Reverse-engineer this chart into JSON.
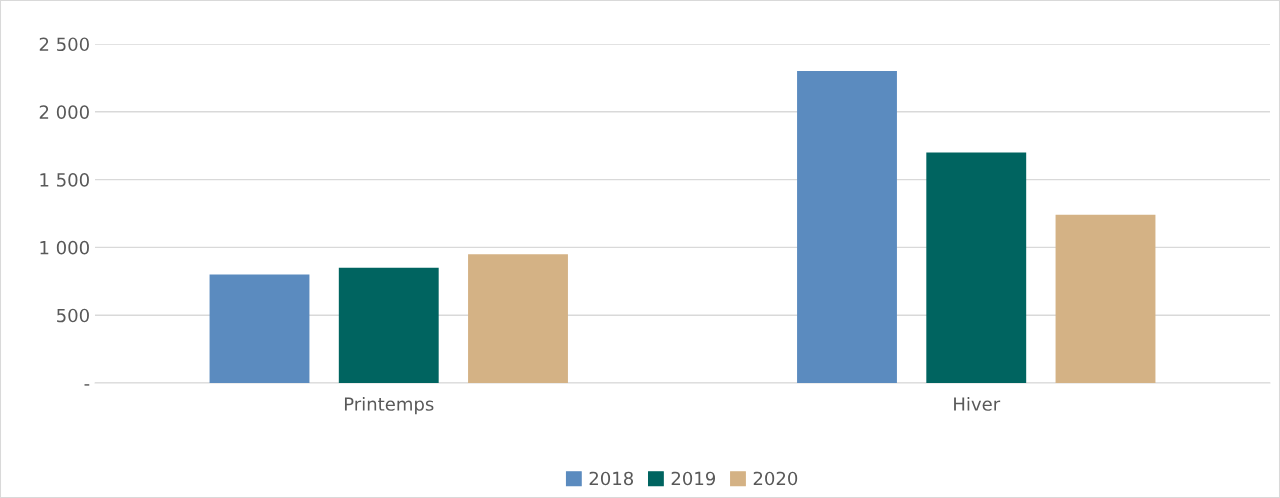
{
  "chart_data": {
    "type": "bar",
    "categories": [
      "Printemps",
      "Hiver"
    ],
    "series": [
      {
        "name": "2018",
        "color": "#5b8bbf",
        "values": [
          800,
          2300
        ]
      },
      {
        "name": "2019",
        "color": "#006460",
        "values": [
          850,
          1700
        ]
      },
      {
        "name": "2020",
        "color": "#d4b285",
        "values": [
          950,
          1240
        ]
      }
    ],
    "ylim": [
      0,
      2500
    ],
    "yticks": [
      {
        "value": 0,
        "label": "-"
      },
      {
        "value": 500,
        "label": "500"
      },
      {
        "value": 1000,
        "label": "1 000"
      },
      {
        "value": 1500,
        "label": "1 500"
      },
      {
        "value": 2000,
        "label": "2 000"
      },
      {
        "value": 2500,
        "label": "2 500"
      }
    ],
    "grid": "y",
    "legend": "bottom"
  }
}
